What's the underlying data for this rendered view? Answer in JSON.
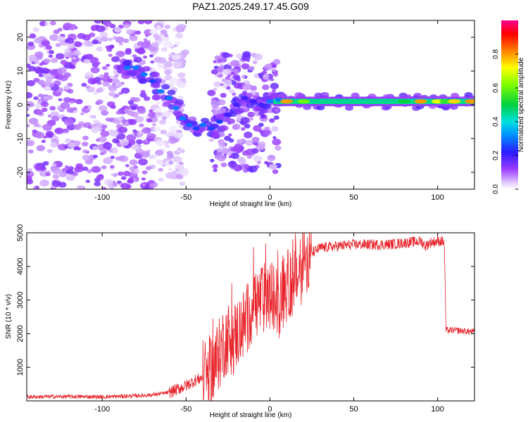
{
  "page_title": "PAZ1.2025.249.17.45.G09",
  "chart_data": [
    {
      "type": "heatmap",
      "title": "PAZ1.2025.249.17.45.G09",
      "xlabel": "Height of straight line (km)",
      "ylabel": "Frequency (Hz)",
      "xlim": [
        -145,
        122
      ],
      "ylim": [
        -25,
        25
      ],
      "x_ticks": [
        -100,
        -50,
        0,
        50,
        100
      ],
      "y_ticks": [
        -20,
        -10,
        0,
        10,
        20
      ],
      "grid": false,
      "colormap": "rainbow (white-purple-blue-cyan-green-yellow-red-magenta)",
      "colorbar": {
        "label": "Normalized spectral amplitude",
        "range": [
          0,
          1
        ],
        "ticks": [
          0.0,
          0.2,
          0.4,
          0.6,
          0.8
        ]
      },
      "noise_region_x": [
        -145,
        -55
      ],
      "ridge": [
        {
          "x": -85,
          "y": 11,
          "amp": 0.3
        },
        {
          "x": -80,
          "y": 11,
          "amp": 0.3
        },
        {
          "x": -75,
          "y": 9,
          "amp": 0.3
        },
        {
          "x": -70,
          "y": 7,
          "amp": 0.25
        },
        {
          "x": -65,
          "y": 4,
          "amp": 0.3
        },
        {
          "x": -60,
          "y": 2,
          "amp": 0.3
        },
        {
          "x": -56,
          "y": -1,
          "amp": 0.3
        },
        {
          "x": -52,
          "y": -4,
          "amp": 0.3
        },
        {
          "x": -48,
          "y": -6,
          "amp": 0.28
        },
        {
          "x": -44,
          "y": -7,
          "amp": 0.25
        },
        {
          "x": -40,
          "y": -6,
          "amp": 0.3
        },
        {
          "x": -35,
          "y": -7,
          "amp": 0.25
        },
        {
          "x": -30,
          "y": -5,
          "amp": 0.25
        },
        {
          "x": -25,
          "y": -3,
          "amp": 0.2
        },
        {
          "x": -20,
          "y": 0,
          "amp": 0.2
        },
        {
          "x": -15,
          "y": 2,
          "amp": 0.2
        },
        {
          "x": -10,
          "y": 1,
          "amp": 0.2
        },
        {
          "x": -5,
          "y": 0,
          "amp": 0.2
        },
        {
          "x": 0,
          "y": 1,
          "amp": 0.3
        },
        {
          "x": 5,
          "y": 1.5,
          "amp": 0.3
        },
        {
          "x": 10,
          "y": 1,
          "amp": 0.8
        },
        {
          "x": 20,
          "y": 1,
          "amp": 0.6
        },
        {
          "x": 30,
          "y": 1,
          "amp": 0.45
        },
        {
          "x": 40,
          "y": 1,
          "amp": 0.45
        },
        {
          "x": 50,
          "y": 1,
          "amp": 0.45
        },
        {
          "x": 60,
          "y": 1,
          "amp": 0.45
        },
        {
          "x": 70,
          "y": 1,
          "amp": 0.45
        },
        {
          "x": 80,
          "y": 1,
          "amp": 0.5
        },
        {
          "x": 90,
          "y": 1,
          "amp": 0.8
        },
        {
          "x": 100,
          "y": 1,
          "amp": 0.7
        },
        {
          "x": 105,
          "y": 1,
          "amp": 0.55
        },
        {
          "x": 110,
          "y": 1,
          "amp": 0.75
        },
        {
          "x": 120,
          "y": 1,
          "amp": 0.8
        }
      ]
    },
    {
      "type": "line",
      "xlabel": "Height of straight line (km)",
      "ylabel": "SNR (10 * v/v)",
      "xlim": [
        -145,
        122
      ],
      "ylim": [
        0,
        5000
      ],
      "x_ticks": [
        -100,
        -50,
        0,
        50,
        100
      ],
      "y_ticks": [
        1000,
        2000,
        3000,
        4000,
        5000
      ],
      "grid": false,
      "series": [
        {
          "color": "#e8232a",
          "x": [
            -145,
            -120,
            -100,
            -80,
            -70,
            -60,
            -55,
            -50,
            -45,
            -40,
            -38,
            -35,
            -30,
            -28,
            -25,
            -22,
            -20,
            -15,
            -12,
            -10,
            -5,
            0,
            5,
            10,
            15,
            18,
            20,
            22,
            25,
            30,
            40,
            50,
            60,
            70,
            80,
            90,
            93,
            95,
            100,
            103,
            104,
            105,
            110,
            115,
            122
          ],
          "y": [
            120,
            130,
            120,
            150,
            180,
            250,
            350,
            450,
            600,
            700,
            800,
            900,
            1400,
            1700,
            1900,
            1800,
            2000,
            2300,
            2600,
            2900,
            3000,
            3100,
            2900,
            3400,
            3600,
            3800,
            4200,
            4300,
            4400,
            4550,
            4600,
            4650,
            4650,
            4650,
            4700,
            4750,
            4600,
            4700,
            4750,
            4750,
            4700,
            2100,
            2100,
            2080,
            2050
          ]
        }
      ]
    }
  ]
}
